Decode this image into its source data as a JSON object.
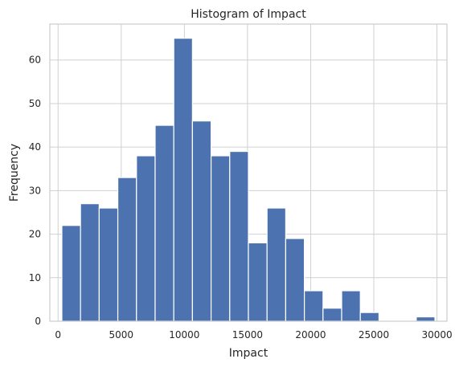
{
  "chart_data": {
    "type": "bar",
    "title": "Histogram of Impact",
    "xlabel": "Impact",
    "ylabel": "Frequency",
    "bin_edges": [
      300,
      1777,
      3254,
      4731,
      6208,
      7685,
      9162,
      10639,
      12116,
      13593,
      15070,
      16547,
      18024,
      19501,
      20978,
      22455,
      23932,
      25409,
      26886,
      28363,
      29840
    ],
    "values": [
      22,
      27,
      26,
      33,
      38,
      45,
      65,
      46,
      38,
      39,
      18,
      26,
      19,
      7,
      3,
      7,
      2,
      0,
      0,
      1
    ],
    "xlim": [
      -652,
      30792
    ],
    "ylim": [
      0,
      68.25
    ],
    "xticks": [
      0,
      5000,
      10000,
      15000,
      20000,
      25000,
      30000
    ],
    "xtick_labels": [
      "0",
      "5000",
      "10000",
      "15000",
      "20000",
      "25000",
      "30000"
    ],
    "yticks": [
      0,
      10,
      20,
      30,
      40,
      50,
      60
    ],
    "ytick_labels": [
      "0",
      "10",
      "20",
      "30",
      "40",
      "50",
      "60"
    ],
    "grid": true,
    "bar_color": "#4c72b0",
    "edge_color": "#ffffff"
  }
}
